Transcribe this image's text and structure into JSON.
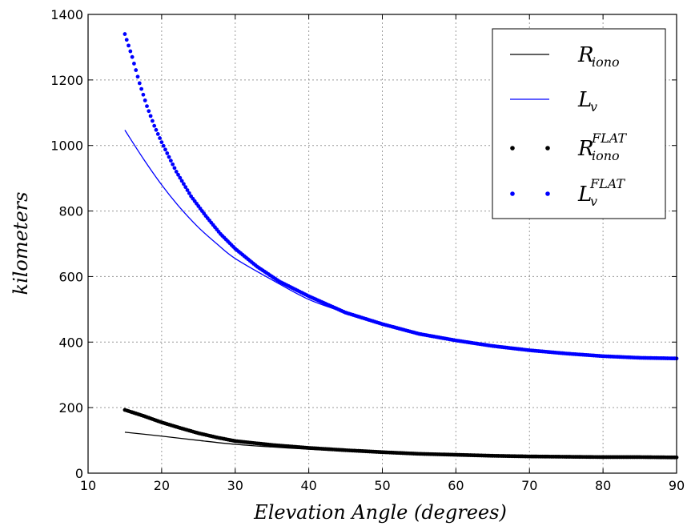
{
  "chart_data": {
    "type": "line",
    "xlabel": "Elevation Angle (degrees)",
    "ylabel": "kilometers",
    "xlim": [
      10,
      90
    ],
    "ylim": [
      0,
      1400
    ],
    "xticks": [
      "10",
      "20",
      "30",
      "40",
      "50",
      "60",
      "70",
      "80",
      "90"
    ],
    "yticks": [
      "0",
      "200",
      "400",
      "600",
      "800",
      "1000",
      "1200",
      "1400"
    ],
    "grid": true,
    "legend_position": "top-right",
    "series": [
      {
        "name": "R_iono",
        "legend_main": "R",
        "legend_sub": "iono",
        "legend_sup": "",
        "style": "line",
        "color": "#000000",
        "x": [
          15,
          20,
          25,
          30,
          35,
          40,
          45,
          50,
          55,
          60,
          65,
          70,
          75,
          80,
          85,
          90
        ],
        "y": [
          125,
          113,
          100,
          88,
          80,
          73,
          67,
          62,
          58,
          55,
          53,
          51,
          50,
          50,
          49,
          49
        ]
      },
      {
        "name": "L_v",
        "legend_main": "L",
        "legend_sub": "v",
        "legend_sup": "",
        "style": "line",
        "color": "#0000ff",
        "x": [
          15,
          17.5,
          20,
          22.5,
          25,
          27.5,
          30,
          35,
          40,
          45,
          50,
          55,
          60,
          65,
          70,
          75,
          80,
          85,
          90
        ],
        "y": [
          1047,
          960,
          880,
          810,
          750,
          700,
          655,
          590,
          530,
          490,
          455,
          425,
          405,
          388,
          375,
          365,
          357,
          352,
          350
        ]
      },
      {
        "name": "R_iono^FLAT",
        "legend_main": "R",
        "legend_sub": "iono",
        "legend_sup": "FLAT",
        "style": "dots",
        "color": "#000000",
        "x": [
          15,
          17.5,
          20,
          22.5,
          25,
          27.5,
          30,
          35,
          40,
          45,
          50,
          55,
          60,
          65,
          70,
          75,
          80,
          85,
          90
        ],
        "y": [
          193,
          175,
          155,
          138,
          122,
          109,
          98,
          86,
          77,
          70,
          64,
          59,
          56,
          53,
          51,
          50,
          49,
          49,
          48
        ]
      },
      {
        "name": "L_v^FLAT",
        "legend_main": "L",
        "legend_sub": "v",
        "legend_sup": "FLAT",
        "style": "dots",
        "color": "#0000ff",
        "x": [
          15,
          16,
          17,
          18,
          19,
          20,
          22,
          24,
          26,
          28,
          30,
          33,
          36,
          40,
          45,
          50,
          55,
          60,
          65,
          70,
          75,
          80,
          85,
          90
        ],
        "y": [
          1340,
          1270,
          1190,
          1120,
          1060,
          1010,
          920,
          845,
          785,
          730,
          685,
          630,
          585,
          540,
          490,
          455,
          425,
          405,
          388,
          375,
          365,
          357,
          352,
          350
        ]
      }
    ]
  }
}
